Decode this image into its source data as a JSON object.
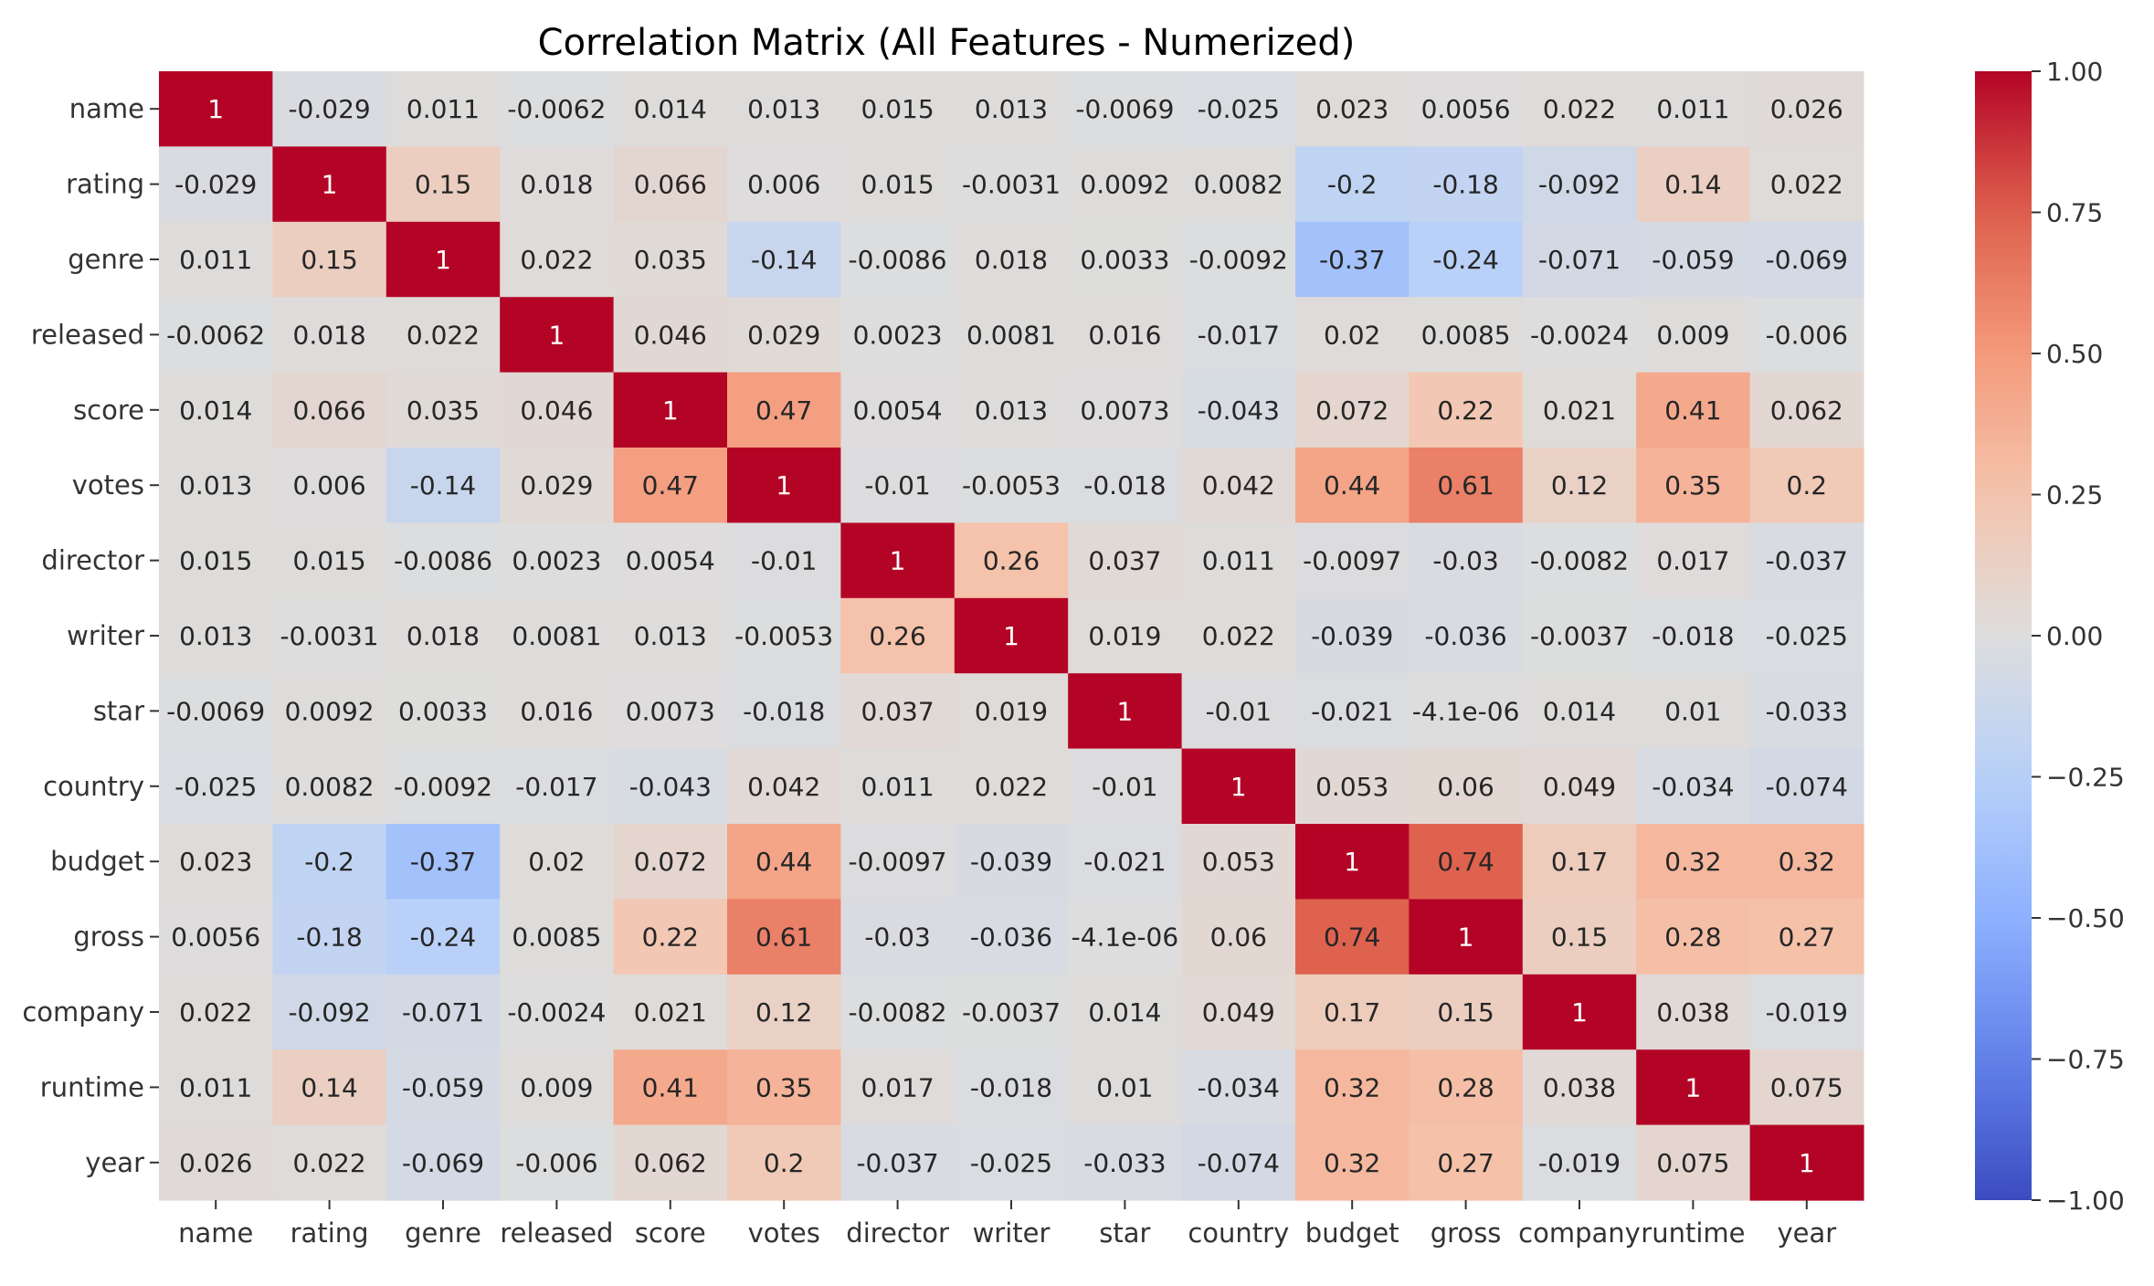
{
  "chart_data": {
    "type": "heatmap",
    "title": "Correlation Matrix (All Features - Numerized)",
    "xlabel": "",
    "ylabel": "",
    "labels": [
      "name",
      "rating",
      "genre",
      "released",
      "score",
      "votes",
      "director",
      "writer",
      "star",
      "country",
      "budget",
      "gross",
      "company",
      "runtime",
      "year"
    ],
    "matrix": [
      [
        1,
        -0.029,
        0.011,
        -0.0062,
        0.014,
        0.013,
        0.015,
        0.013,
        -0.0069,
        -0.025,
        0.023,
        0.0056,
        0.022,
        0.011,
        0.026
      ],
      [
        -0.029,
        1,
        0.15,
        0.018,
        0.066,
        0.006,
        0.015,
        -0.0031,
        0.0092,
        0.0082,
        -0.2,
        -0.18,
        -0.092,
        0.14,
        0.022
      ],
      [
        0.011,
        0.15,
        1,
        0.022,
        0.035,
        -0.14,
        -0.0086,
        0.018,
        0.0033,
        -0.0092,
        -0.37,
        -0.24,
        -0.071,
        -0.059,
        -0.069
      ],
      [
        -0.0062,
        0.018,
        0.022,
        1,
        0.046,
        0.029,
        0.0023,
        0.0081,
        0.016,
        -0.017,
        0.02,
        0.0085,
        -0.0024,
        0.009,
        -0.006
      ],
      [
        0.014,
        0.066,
        0.035,
        0.046,
        1,
        0.47,
        0.0054,
        0.013,
        0.0073,
        -0.043,
        0.072,
        0.22,
        0.021,
        0.41,
        0.062
      ],
      [
        0.013,
        0.006,
        -0.14,
        0.029,
        0.47,
        1,
        -0.01,
        -0.0053,
        -0.018,
        0.042,
        0.44,
        0.61,
        0.12,
        0.35,
        0.2
      ],
      [
        0.015,
        0.015,
        -0.0086,
        0.0023,
        0.0054,
        -0.01,
        1,
        0.26,
        0.037,
        0.011,
        -0.0097,
        -0.03,
        -0.0082,
        0.017,
        -0.037
      ],
      [
        0.013,
        -0.0031,
        0.018,
        0.0081,
        0.013,
        -0.0053,
        0.26,
        1,
        0.019,
        0.022,
        -0.039,
        -0.036,
        -0.0037,
        -0.018,
        -0.025
      ],
      [
        -0.0069,
        0.0092,
        0.0033,
        0.016,
        0.0073,
        -0.018,
        0.037,
        0.019,
        1,
        -0.01,
        -0.021,
        -4.1e-06,
        0.014,
        0.01,
        -0.033
      ],
      [
        -0.025,
        0.0082,
        -0.0092,
        -0.017,
        -0.043,
        0.042,
        0.011,
        0.022,
        -0.01,
        1,
        0.053,
        0.06,
        0.049,
        -0.034,
        -0.074
      ],
      [
        0.023,
        -0.2,
        -0.37,
        0.02,
        0.072,
        0.44,
        -0.0097,
        -0.039,
        -0.021,
        0.053,
        1,
        0.74,
        0.17,
        0.32,
        0.32
      ],
      [
        0.0056,
        -0.18,
        -0.24,
        0.0085,
        0.22,
        0.61,
        -0.03,
        -0.036,
        -4.1e-06,
        0.06,
        0.74,
        1,
        0.15,
        0.28,
        0.27
      ],
      [
        0.022,
        -0.092,
        -0.071,
        -0.0024,
        0.021,
        0.12,
        -0.0082,
        -0.0037,
        0.014,
        0.049,
        0.17,
        0.15,
        1,
        0.038,
        -0.019
      ],
      [
        0.011,
        0.14,
        -0.059,
        0.009,
        0.41,
        0.35,
        0.017,
        -0.018,
        0.01,
        -0.034,
        0.32,
        0.28,
        0.038,
        1,
        0.075
      ],
      [
        0.026,
        0.022,
        -0.069,
        -0.006,
        0.062,
        0.2,
        -0.037,
        -0.025,
        -0.033,
        -0.074,
        0.32,
        0.27,
        -0.019,
        0.075,
        1
      ]
    ],
    "cell_text": [
      [
        "1",
        "-0.029",
        "0.011",
        "-0.0062",
        "0.014",
        "0.013",
        "0.015",
        "0.013",
        "-0.0069",
        "-0.025",
        "0.023",
        "0.0056",
        "0.022",
        "0.011",
        "0.026"
      ],
      [
        "-0.029",
        "1",
        "0.15",
        "0.018",
        "0.066",
        "0.006",
        "0.015",
        "-0.0031",
        "0.0092",
        "0.0082",
        "-0.2",
        "-0.18",
        "-0.092",
        "0.14",
        "0.022"
      ],
      [
        "0.011",
        "0.15",
        "1",
        "0.022",
        "0.035",
        "-0.14",
        "-0.0086",
        "0.018",
        "0.0033",
        "-0.0092",
        "-0.37",
        "-0.24",
        "-0.071",
        "-0.059",
        "-0.069"
      ],
      [
        "-0.0062",
        "0.018",
        "0.022",
        "1",
        "0.046",
        "0.029",
        "0.0023",
        "0.0081",
        "0.016",
        "-0.017",
        "0.02",
        "0.0085",
        "-0.0024",
        "0.009",
        "-0.006"
      ],
      [
        "0.014",
        "0.066",
        "0.035",
        "0.046",
        "1",
        "0.47",
        "0.0054",
        "0.013",
        "0.0073",
        "-0.043",
        "0.072",
        "0.22",
        "0.021",
        "0.41",
        "0.062"
      ],
      [
        "0.013",
        "0.006",
        "-0.14",
        "0.029",
        "0.47",
        "1",
        "-0.01",
        "-0.0053",
        "-0.018",
        "0.042",
        "0.44",
        "0.61",
        "0.12",
        "0.35",
        "0.2"
      ],
      [
        "0.015",
        "0.015",
        "-0.0086",
        "0.0023",
        "0.0054",
        "-0.01",
        "1",
        "0.26",
        "0.037",
        "0.011",
        "-0.0097",
        "-0.03",
        "-0.0082",
        "0.017",
        "-0.037"
      ],
      [
        "0.013",
        "-0.0031",
        "0.018",
        "0.0081",
        "0.013",
        "-0.0053",
        "0.26",
        "1",
        "0.019",
        "0.022",
        "-0.039",
        "-0.036",
        "-0.0037",
        "-0.018",
        "-0.025"
      ],
      [
        "-0.0069",
        "0.0092",
        "0.0033",
        "0.016",
        "0.0073",
        "-0.018",
        "0.037",
        "0.019",
        "1",
        "-0.01",
        "-0.021",
        "-4.1e-06",
        "0.014",
        "0.01",
        "-0.033"
      ],
      [
        "-0.025",
        "0.0082",
        "-0.0092",
        "-0.017",
        "-0.043",
        "0.042",
        "0.011",
        "0.022",
        "-0.01",
        "1",
        "0.053",
        "0.06",
        "0.049",
        "-0.034",
        "-0.074"
      ],
      [
        "0.023",
        "-0.2",
        "-0.37",
        "0.02",
        "0.072",
        "0.44",
        "-0.0097",
        "-0.039",
        "-0.021",
        "0.053",
        "1",
        "0.74",
        "0.17",
        "0.32",
        "0.32"
      ],
      [
        "0.0056",
        "-0.18",
        "-0.24",
        "0.0085",
        "0.22",
        "0.61",
        "-0.03",
        "-0.036",
        "-4.1e-06",
        "0.06",
        "0.74",
        "1",
        "0.15",
        "0.28",
        "0.27"
      ],
      [
        "0.022",
        "-0.092",
        "-0.071",
        "-0.0024",
        "0.021",
        "0.12",
        "-0.0082",
        "-0.0037",
        "0.014",
        "0.049",
        "0.17",
        "0.15",
        "1",
        "0.038",
        "-0.019"
      ],
      [
        "0.011",
        "0.14",
        "-0.059",
        "0.009",
        "0.41",
        "0.35",
        "0.017",
        "-0.018",
        "0.01",
        "-0.034",
        "0.32",
        "0.28",
        "0.038",
        "1",
        "0.075"
      ],
      [
        "0.026",
        "0.022",
        "-0.069",
        "-0.006",
        "0.062",
        "0.2",
        "-0.037",
        "-0.025",
        "-0.033",
        "-0.074",
        "0.32",
        "0.27",
        "-0.019",
        "0.075",
        "1"
      ]
    ],
    "vmin": -1.0,
    "vmax": 1.0,
    "colormap": "coolwarm",
    "colorbar_ticks": [
      "1.00",
      "0.75",
      "0.50",
      "0.25",
      "0.00",
      "−0.25",
      "−0.50",
      "−0.75",
      "−1.00"
    ],
    "colorbar_tick_values": [
      1.0,
      0.75,
      0.5,
      0.25,
      0.0,
      -0.25,
      -0.5,
      -0.75,
      -1.0
    ],
    "grid": false,
    "legend": "colorbar-right"
  }
}
